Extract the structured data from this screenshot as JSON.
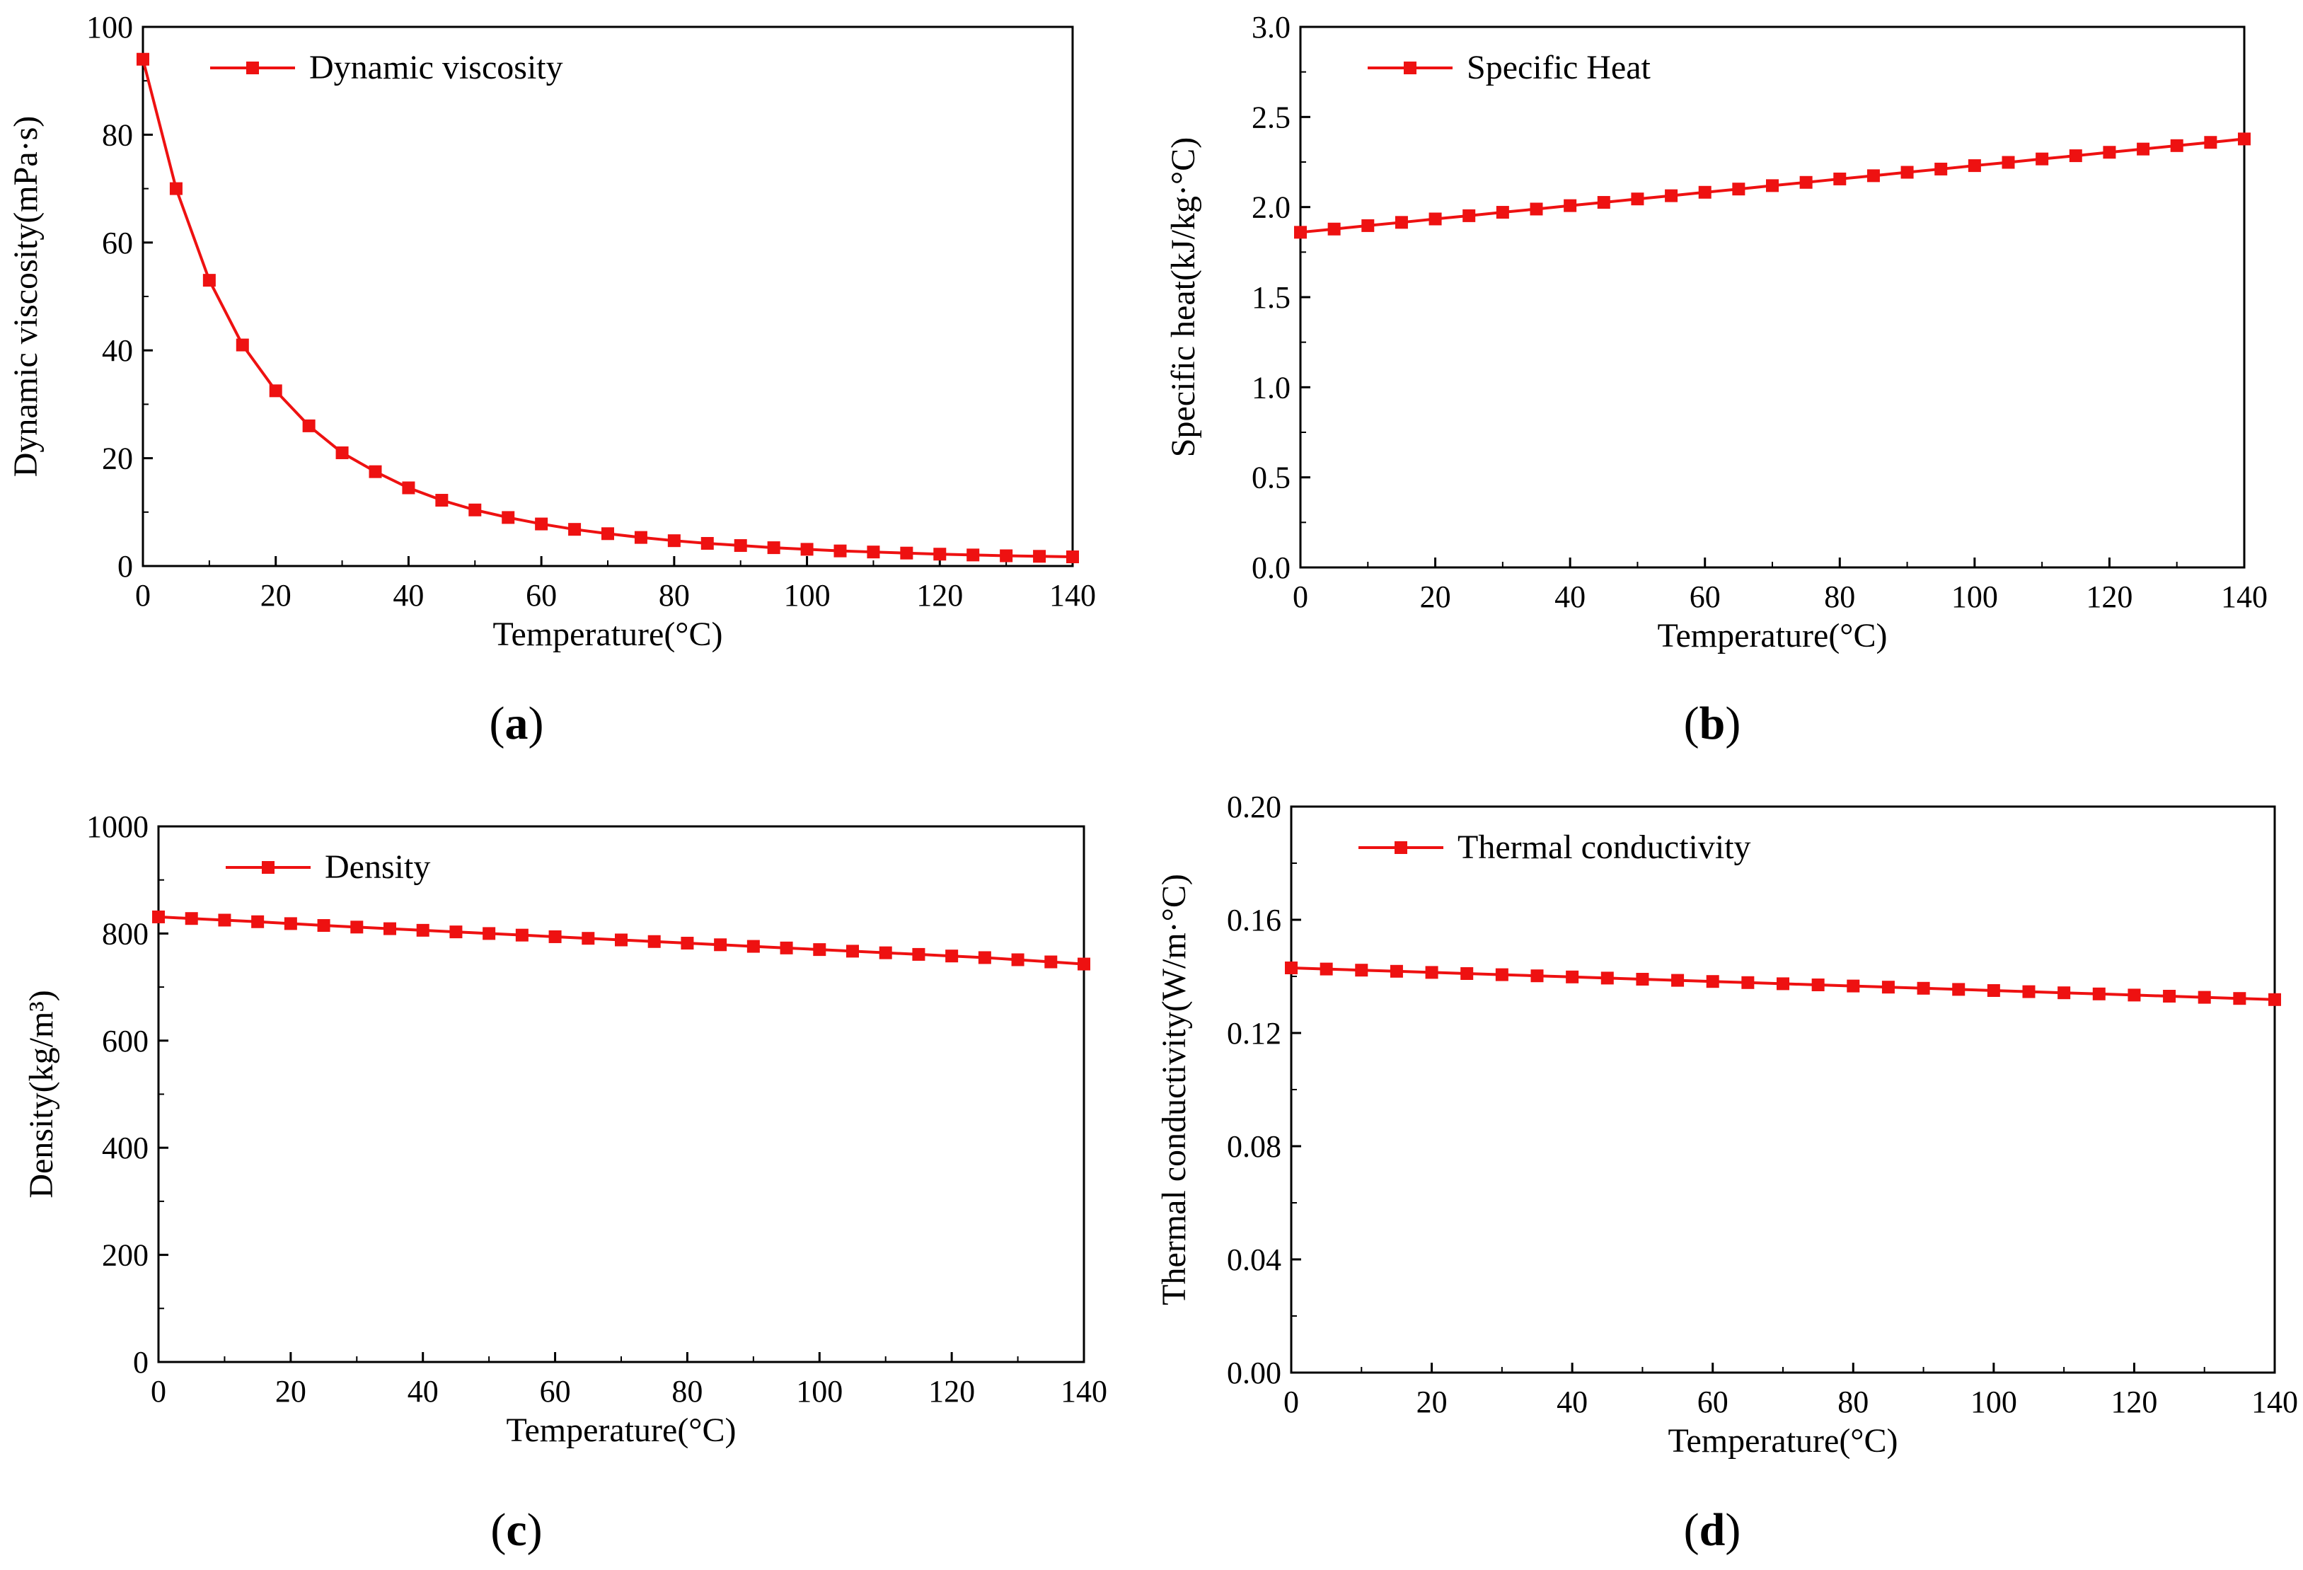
{
  "figure": {
    "panel_labels": [
      "a",
      "b",
      "c",
      "d"
    ]
  },
  "colors": {
    "series": "#ee1111",
    "axis": "#000000"
  },
  "chart_data": [
    {
      "id": "a",
      "type": "line",
      "title": "",
      "xlabel": "Temperature(°C)",
      "ylabel": "Dynamic viscosity(mPa·s)",
      "xlim": [
        0,
        140
      ],
      "ylim": [
        0,
        100
      ],
      "xticks": [
        0,
        20,
        40,
        60,
        80,
        100,
        120,
        140
      ],
      "yticks": [
        0,
        20,
        40,
        60,
        80,
        100
      ],
      "tick_labels_x": [
        "0",
        "20",
        "40",
        "60",
        "80",
        "100",
        "120",
        "140"
      ],
      "tick_labels_y": [
        "0",
        "20",
        "40",
        "60",
        "80",
        "100"
      ],
      "legend": "top-left",
      "series": [
        {
          "name": "Dynamic viscosity",
          "x": [
            0,
            5,
            10,
            15,
            20,
            25,
            30,
            35,
            40,
            45,
            50,
            55,
            60,
            65,
            70,
            75,
            80,
            85,
            90,
            95,
            100,
            105,
            110,
            115,
            120,
            125,
            130,
            135,
            140
          ],
          "y": [
            94,
            70,
            53,
            41,
            32.5,
            26,
            21,
            17.5,
            14.5,
            12.2,
            10.4,
            9,
            7.8,
            6.8,
            6,
            5.3,
            4.7,
            4.2,
            3.8,
            3.4,
            3.1,
            2.8,
            2.6,
            2.4,
            2.2,
            2.05,
            1.9,
            1.8,
            1.7
          ]
        }
      ]
    },
    {
      "id": "b",
      "type": "line",
      "title": "",
      "xlabel": "Temperature(°C)",
      "ylabel": "Specific heat(kJ/kg·°C)",
      "xlim": [
        0,
        140
      ],
      "ylim": [
        0,
        3.0
      ],
      "xticks": [
        0,
        20,
        40,
        60,
        80,
        100,
        120,
        140
      ],
      "yticks": [
        0,
        0.5,
        1.0,
        1.5,
        2.0,
        2.5,
        3.0
      ],
      "tick_labels_x": [
        "0",
        "20",
        "40",
        "60",
        "80",
        "100",
        "120",
        "140"
      ],
      "tick_labels_y": [
        "0.0",
        "0.5",
        "1.0",
        "1.5",
        "2.0",
        "2.5",
        "3.0"
      ],
      "legend": "top-left",
      "series": [
        {
          "name": "Specific Heat",
          "x": [
            0,
            5,
            10,
            15,
            20,
            25,
            30,
            35,
            40,
            45,
            50,
            55,
            60,
            65,
            70,
            75,
            80,
            85,
            90,
            95,
            100,
            105,
            110,
            115,
            120,
            125,
            130,
            135,
            140
          ],
          "y": [
            1.86,
            1.878,
            1.897,
            1.915,
            1.934,
            1.952,
            1.971,
            1.989,
            2.008,
            2.026,
            2.045,
            2.063,
            2.082,
            2.1,
            2.119,
            2.137,
            2.156,
            2.174,
            2.193,
            2.211,
            2.23,
            2.248,
            2.267,
            2.285,
            2.304,
            2.322,
            2.341,
            2.359,
            2.378
          ]
        }
      ]
    },
    {
      "id": "c",
      "type": "line",
      "title": "",
      "xlabel": "Temperature(°C)",
      "ylabel": "Density(kg/m³)",
      "xlim": [
        0,
        140
      ],
      "ylim": [
        0,
        1000
      ],
      "xticks": [
        0,
        20,
        40,
        60,
        80,
        100,
        120,
        140
      ],
      "yticks": [
        0,
        200,
        400,
        600,
        800,
        1000
      ],
      "tick_labels_x": [
        "0",
        "20",
        "40",
        "60",
        "80",
        "100",
        "120",
        "140"
      ],
      "tick_labels_y": [
        "0",
        "200",
        "400",
        "600",
        "800",
        "1000"
      ],
      "legend": "top-left",
      "series": [
        {
          "name": "Density",
          "x": [
            0,
            5,
            10,
            15,
            20,
            25,
            30,
            35,
            40,
            45,
            50,
            55,
            60,
            65,
            70,
            75,
            80,
            85,
            90,
            95,
            100,
            105,
            110,
            115,
            120,
            125,
            130,
            135,
            140
          ],
          "y": [
            831,
            828,
            825,
            822,
            818.5,
            815,
            812,
            809,
            806,
            803,
            800,
            797,
            794,
            791,
            788,
            785,
            782,
            779,
            776,
            773,
            770,
            767,
            764,
            761,
            758,
            755,
            751,
            747,
            743
          ]
        }
      ]
    },
    {
      "id": "d",
      "type": "line",
      "title": "",
      "xlabel": "Temperature(°C)",
      "ylabel": "Thermal conductivity(W/m·°C)",
      "xlim": [
        0,
        140
      ],
      "ylim": [
        0,
        0.2
      ],
      "xticks": [
        0,
        20,
        40,
        60,
        80,
        100,
        120,
        140
      ],
      "yticks": [
        0,
        0.04,
        0.08,
        0.12,
        0.16,
        0.2
      ],
      "tick_labels_x": [
        "0",
        "20",
        "40",
        "60",
        "80",
        "100",
        "120",
        "140"
      ],
      "tick_labels_y": [
        "0.00",
        "0.04",
        "0.08",
        "0.12",
        "0.16",
        "0.20"
      ],
      "legend": "top-left",
      "series": [
        {
          "name": "Thermal conductivity",
          "x": [
            0,
            5,
            10,
            15,
            20,
            25,
            30,
            35,
            40,
            45,
            50,
            55,
            60,
            65,
            70,
            75,
            80,
            85,
            90,
            95,
            100,
            105,
            110,
            115,
            120,
            125,
            130,
            135,
            140
          ],
          "y": [
            0.143,
            0.1426,
            0.1422,
            0.1418,
            0.1414,
            0.141,
            0.1406,
            0.1402,
            0.1398,
            0.1394,
            0.139,
            0.1386,
            0.1382,
            0.1378,
            0.1374,
            0.137,
            0.1366,
            0.1362,
            0.1358,
            0.1354,
            0.135,
            0.1346,
            0.1342,
            0.1338,
            0.1334,
            0.133,
            0.1326,
            0.1322,
            0.1318
          ]
        }
      ]
    }
  ]
}
